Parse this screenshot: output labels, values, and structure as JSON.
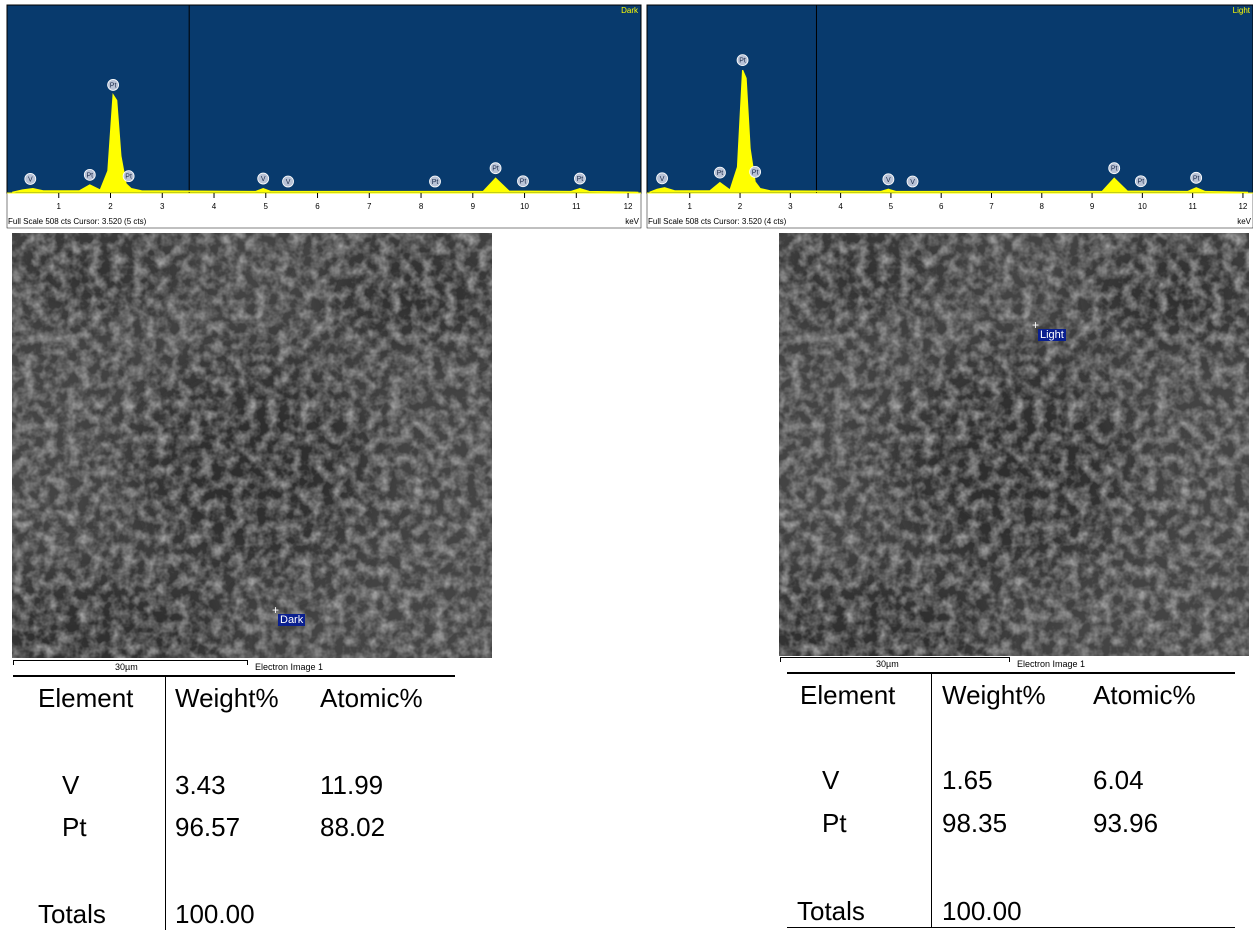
{
  "chart_data": [
    {
      "type": "line",
      "title": "Dark",
      "footer": "Full Scale 508 cts Cursor: 3.520  (5 cts)",
      "xlabel": "keV",
      "x": [
        0.1,
        0.3,
        0.5,
        0.7,
        1.4,
        1.6,
        1.8,
        1.95,
        2.05,
        2.12,
        2.2,
        2.3,
        2.4,
        2.6,
        4.8,
        4.95,
        5.1,
        9.2,
        9.44,
        9.7,
        10.9,
        11.07,
        11.25,
        12.2
      ],
      "values": [
        2,
        8,
        12,
        6,
        6,
        22,
        8,
        60,
        265,
        250,
        100,
        25,
        12,
        6,
        4,
        12,
        4,
        4,
        40,
        5,
        4,
        12,
        4,
        2
      ],
      "color": "#ffff00",
      "background": "#083a6d",
      "cursor": 3.52,
      "xlim": [
        0,
        12.25
      ],
      "ylim": [
        0,
        508
      ],
      "xticks": [
        1,
        2,
        3,
        4,
        5,
        6,
        7,
        8,
        9,
        10,
        11,
        12
      ],
      "peak_labels": [
        {
          "label": "V",
          "x": 0.45
        },
        {
          "label": "Pt",
          "x": 1.6
        },
        {
          "label": "Pt",
          "x": 2.05
        },
        {
          "label": "Pt",
          "x": 2.35
        },
        {
          "label": "V",
          "x": 4.95
        },
        {
          "label": "V",
          "x": 5.43
        },
        {
          "label": "Pt",
          "x": 8.27
        },
        {
          "label": "Pt",
          "x": 9.44
        },
        {
          "label": "Pt",
          "x": 9.97
        },
        {
          "label": "Pt",
          "x": 11.07
        }
      ]
    },
    {
      "type": "line",
      "title": "Light",
      "footer": "Full Scale 508 cts Cursor: 3.520  (4 cts)",
      "xlabel": "keV",
      "x": [
        0.2,
        0.35,
        0.5,
        0.7,
        1.4,
        1.6,
        1.8,
        1.95,
        2.05,
        2.12,
        2.2,
        2.3,
        2.4,
        2.6,
        4.8,
        4.95,
        5.1,
        9.2,
        9.44,
        9.7,
        10.9,
        11.07,
        11.25,
        12.1
      ],
      "values": [
        2,
        10,
        14,
        6,
        6,
        28,
        8,
        70,
        332,
        310,
        120,
        30,
        12,
        6,
        4,
        10,
        4,
        4,
        40,
        5,
        4,
        14,
        4,
        2
      ],
      "color": "#ffff00",
      "background": "#083a6d",
      "cursor": 3.52,
      "xlim": [
        0.15,
        12.2
      ],
      "ylim": [
        0,
        508
      ],
      "xticks": [
        1,
        2,
        3,
        4,
        5,
        6,
        7,
        8,
        9,
        10,
        11,
        12
      ],
      "peak_labels": [
        {
          "label": "V",
          "x": 0.45
        },
        {
          "label": "Pt",
          "x": 1.6
        },
        {
          "label": "Pt",
          "x": 2.05
        },
        {
          "label": "Pt",
          "x": 2.3
        },
        {
          "label": "V",
          "x": 4.95
        },
        {
          "label": "V",
          "x": 5.43
        },
        {
          "label": "Pt",
          "x": 9.44
        },
        {
          "label": "Pt",
          "x": 9.97
        },
        {
          "label": "Pt",
          "x": 11.07
        }
      ]
    }
  ],
  "images": [
    {
      "marker": "Dark",
      "scale": "30µm",
      "caption": "Electron Image 1"
    },
    {
      "marker": "Light",
      "scale": "30µm",
      "caption": "Electron Image 1"
    }
  ],
  "tables": [
    {
      "header": [
        "Element",
        "Weight%",
        "Atomic%"
      ],
      "rows": [
        [
          "V",
          "3.43",
          "11.99"
        ],
        [
          "Pt",
          "96.57",
          "88.02"
        ]
      ],
      "totals": [
        "Totals",
        "100.00"
      ]
    },
    {
      "header": [
        "Element",
        "Weight%",
        "Atomic%"
      ],
      "rows": [
        [
          "V",
          "1.65",
          "6.04"
        ],
        [
          "Pt",
          "98.35",
          "93.96"
        ]
      ],
      "totals": [
        "Totals",
        "100.00"
      ]
    }
  ]
}
